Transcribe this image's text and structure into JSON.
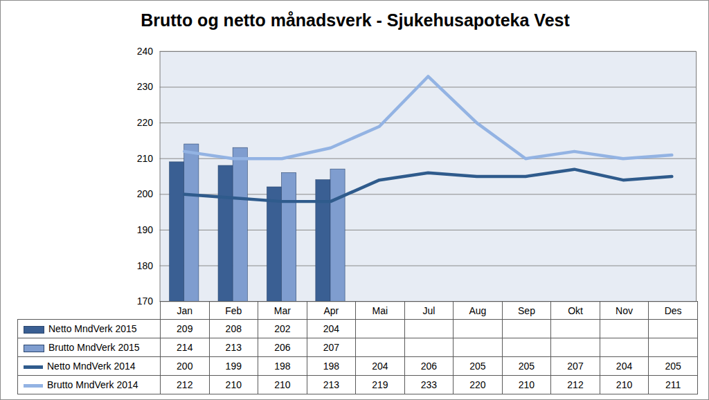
{
  "chart_data": {
    "type": "bar",
    "title": "Brutto og netto månadsverk - Sjukehusapoteka Vest",
    "categories": [
      "Jan",
      "Feb",
      "Mar",
      "Apr",
      "Mai",
      "Jul",
      "Aug",
      "Sep",
      "Okt",
      "Nov",
      "Des"
    ],
    "series": [
      {
        "name": "Netto MndVerk 2015",
        "type": "bar",
        "color": "#3a5f93",
        "values": [
          209,
          208,
          202,
          204,
          null,
          null,
          null,
          null,
          null,
          null,
          null
        ]
      },
      {
        "name": "Brutto MndVerk 2015",
        "type": "bar",
        "color": "#7f9dcf",
        "values": [
          214,
          213,
          206,
          207,
          null,
          null,
          null,
          null,
          null,
          null,
          null
        ]
      },
      {
        "name": "Netto MndVerk 2014",
        "type": "line",
        "color": "#2f5b8c",
        "values": [
          200,
          199,
          198,
          198,
          204,
          206,
          205,
          205,
          207,
          204,
          205
        ]
      },
      {
        "name": "Brutto MndVerk 2014",
        "type": "line",
        "color": "#93b3e3",
        "values": [
          212,
          210,
          210,
          213,
          219,
          233,
          220,
          210,
          212,
          210,
          211
        ]
      }
    ],
    "ylim": [
      170,
      240
    ],
    "yticks": [
      170,
      180,
      190,
      200,
      210,
      220,
      230,
      240
    ],
    "grid": true,
    "legend": "bottom"
  }
}
